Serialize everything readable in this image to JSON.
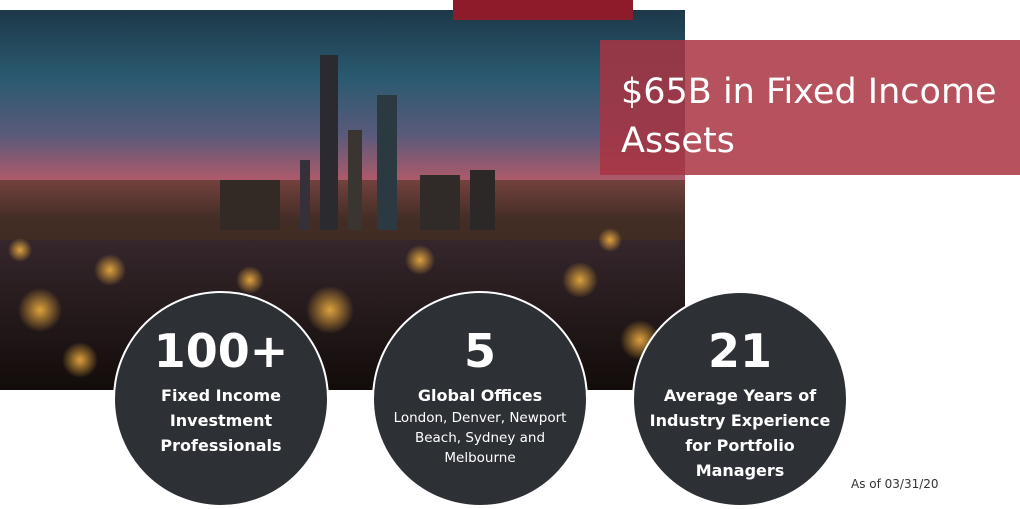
{
  "headline": "$65B in Fixed Income Assets",
  "stats": [
    {
      "number": "100+",
      "label": "Fixed Income Investment Professionals"
    },
    {
      "number": "5",
      "label": "Global Offices",
      "detail": "London, Denver, Newport Beach, Sydney and Melbourne"
    },
    {
      "number": "21",
      "label": "Average Years of Industry Experience for Portfolio Managers"
    }
  ],
  "footnote": "As of 03/31/20"
}
